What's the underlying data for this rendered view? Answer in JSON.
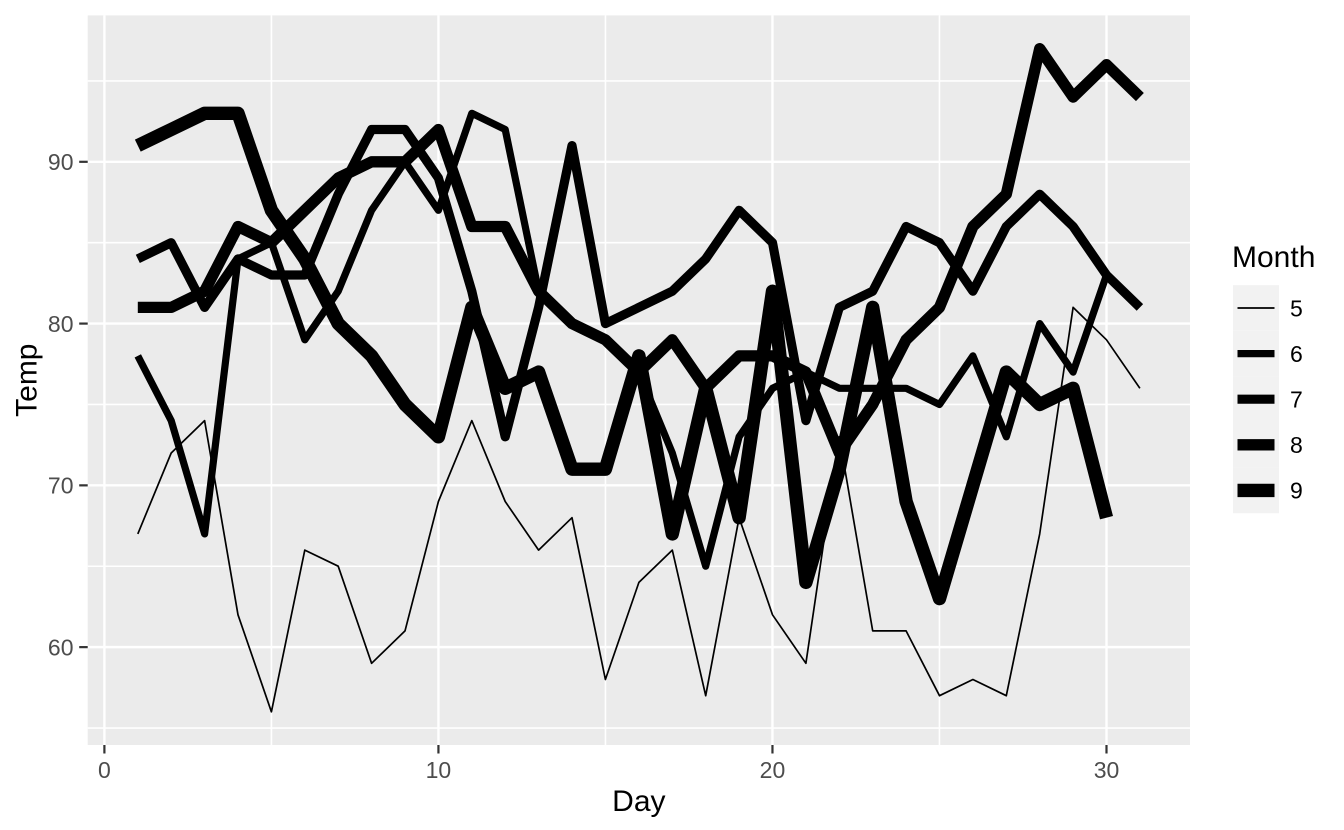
{
  "style": {
    "background": "#FFFFFF",
    "panel_fill": "#EBEBEB",
    "grid_color": "#FFFFFF",
    "line_color": "#000000",
    "legend_key_fill": "#F2F2F2",
    "tick_label_color": "#4D4D4D",
    "tick_mark_color": "#333333",
    "axis_title_color": "#000000",
    "legend_text_color": "#000000"
  },
  "chart_data": {
    "type": "line",
    "title": "",
    "xlabel": "Day",
    "ylabel": "Temp",
    "xlim": [
      -0.5,
      32.5
    ],
    "ylim": [
      53.95,
      99.05
    ],
    "x_ticks": [
      0,
      10,
      20,
      30
    ],
    "x_minor_ticks": [
      5,
      15,
      25
    ],
    "y_ticks": [
      60,
      70,
      80,
      90
    ],
    "y_minor_ticks": [
      55,
      65,
      75,
      85,
      95
    ],
    "grid": true,
    "x_start_day": 1,
    "legend": {
      "title": "Month",
      "position": "right"
    },
    "series": [
      {
        "name": "5",
        "month": 5,
        "stroke_width": 1.7,
        "values": [
          67,
          72,
          74,
          62,
          56,
          66,
          65,
          59,
          61,
          69,
          74,
          69,
          66,
          68,
          58,
          64,
          66,
          57,
          68,
          62,
          59,
          73,
          61,
          61,
          57,
          58,
          57,
          67,
          81,
          79,
          76
        ]
      },
      {
        "name": "6",
        "month": 6,
        "stroke_width": 7.2,
        "values": [
          78,
          74,
          67,
          84,
          85,
          79,
          82,
          87,
          90,
          87,
          93,
          92,
          82,
          80,
          79,
          77,
          72,
          65,
          73,
          76,
          77,
          76,
          76,
          76,
          75,
          78,
          73,
          80,
          77,
          83
        ]
      },
      {
        "name": "7",
        "month": 7,
        "stroke_width": 9.2,
        "values": [
          84,
          85,
          81,
          84,
          83,
          83,
          88,
          92,
          92,
          89,
          82,
          73,
          81,
          91,
          80,
          81,
          82,
          84,
          87,
          85,
          74,
          81,
          82,
          86,
          85,
          82,
          86,
          88,
          86,
          83,
          81
        ]
      },
      {
        "name": "8",
        "month": 8,
        "stroke_width": 11.3,
        "values": [
          81,
          81,
          82,
          86,
          85,
          87,
          89,
          90,
          90,
          92,
          86,
          86,
          82,
          80,
          79,
          77,
          79,
          76,
          78,
          78,
          77,
          72,
          75,
          79,
          81,
          86,
          88,
          97,
          94,
          96,
          94
        ]
      },
      {
        "name": "9",
        "month": 9,
        "stroke_width": 13.4,
        "values": [
          91,
          92,
          93,
          93,
          87,
          84,
          80,
          78,
          75,
          73,
          81,
          76,
          77,
          71,
          71,
          78,
          67,
          76,
          68,
          82,
          64,
          71,
          81,
          69,
          63,
          70,
          77,
          75,
          76,
          68
        ]
      }
    ]
  }
}
